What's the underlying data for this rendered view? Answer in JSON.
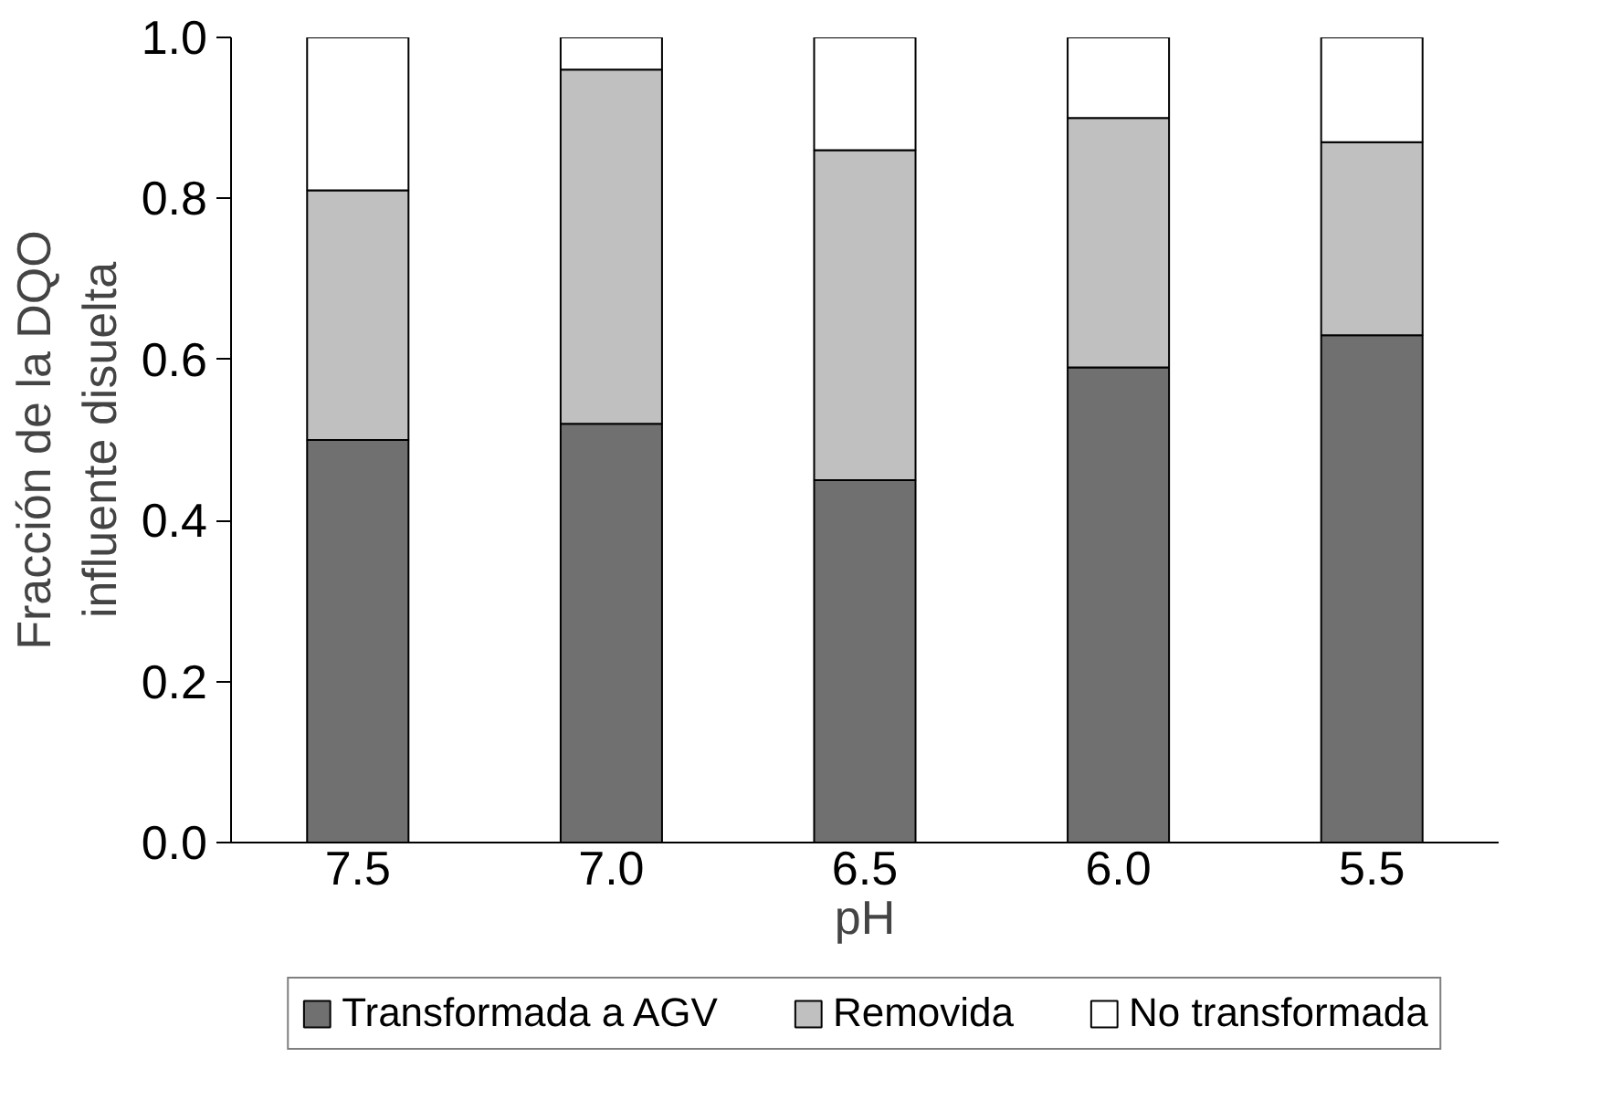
{
  "chart_data": {
    "type": "bar",
    "stacked": true,
    "xlabel": "pH",
    "ylabel": "Fracción de la DQO\ninfluente disuelta",
    "categories": [
      "7.5",
      "7.0",
      "6.5",
      "6.0",
      "5.5"
    ],
    "series": [
      {
        "name": "Transformada a AGV",
        "color": "#707070",
        "values": [
          0.5,
          0.52,
          0.45,
          0.59,
          0.63
        ]
      },
      {
        "name": "Removida",
        "color": "#c0c0c0",
        "values": [
          0.31,
          0.44,
          0.41,
          0.31,
          0.24
        ]
      },
      {
        "name": "No transformada",
        "color": "#ffffff",
        "values": [
          0.19,
          0.04,
          0.14,
          0.1,
          0.13
        ]
      }
    ],
    "ylim": [
      0,
      1.0
    ],
    "yticks": [
      {
        "value": 0,
        "label": "0.0"
      },
      {
        "value": 0.2,
        "label": "0.2"
      },
      {
        "value": 0.4,
        "label": "0.4"
      },
      {
        "value": 0.6,
        "label": "0.6"
      },
      {
        "value": 0.8,
        "label": "0.8"
      },
      {
        "value": 1.0,
        "label": "1.0"
      }
    ],
    "grid": false,
    "legend": "bottom"
  }
}
